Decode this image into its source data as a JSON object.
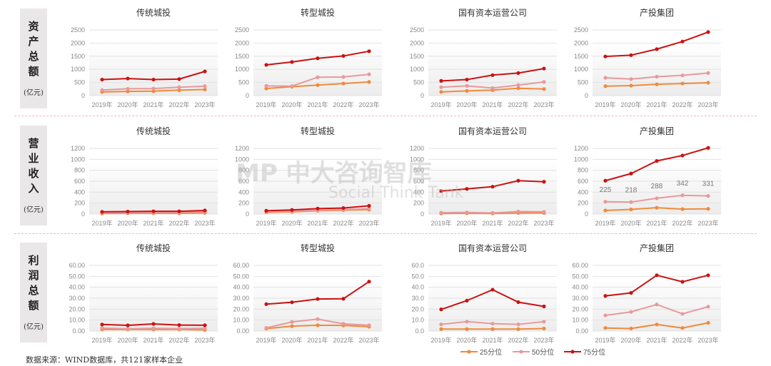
{
  "rows": [
    {
      "label": "资产总额",
      "unit": "(亿元)"
    },
    {
      "label": "营业收入",
      "unit": "(亿元)"
    },
    {
      "label": "利润总额",
      "unit": "(亿元)"
    }
  ],
  "source": "数据来源：WIND数据库，共121家样本企业",
  "watermark": {
    "main": "MP 中大咨询智库",
    "sub": "Social Think Tank"
  },
  "colors": {
    "p25": "#f08a3c",
    "p50": "#e8999c",
    "p75": "#cc1111",
    "grid": "#e2e2e2",
    "axis_text": "#888888"
  },
  "legend": [
    "25分位",
    "50分位",
    "75分位"
  ],
  "chart_data": [
    {
      "type": "line",
      "row": 0,
      "title": "传统城投",
      "categories": [
        "2019年",
        "2020年",
        "2021年",
        "2022年",
        "2023年"
      ],
      "ylim": [
        0,
        2500
      ],
      "yticks": [
        "0",
        "500",
        "1000",
        "1500",
        "2000",
        "2500"
      ],
      "series": [
        {
          "name": "25分位",
          "values": [
            140,
            160,
            170,
            210,
            230
          ]
        },
        {
          "name": "50分位",
          "values": [
            210,
            260,
            270,
            320,
            360
          ]
        },
        {
          "name": "75分位",
          "values": [
            610,
            650,
            610,
            630,
            920
          ]
        }
      ]
    },
    {
      "type": "line",
      "row": 0,
      "title": "转型城投",
      "categories": [
        "2019年",
        "2020年",
        "2021年",
        "2022年",
        "2023年"
      ],
      "ylim": [
        0,
        2500
      ],
      "yticks": [
        "0",
        "500",
        "1000",
        "1500",
        "2000",
        "2500"
      ],
      "series": [
        {
          "name": "25分位",
          "values": [
            270,
            340,
            400,
            460,
            520
          ]
        },
        {
          "name": "50分位",
          "values": [
            370,
            360,
            700,
            710,
            810
          ]
        },
        {
          "name": "75分位",
          "values": [
            1170,
            1280,
            1420,
            1510,
            1690
          ]
        }
      ]
    },
    {
      "type": "line",
      "row": 0,
      "title": "国有资本运营公司",
      "categories": [
        "2019年",
        "2020年",
        "2021年",
        "2022年",
        "2023年"
      ],
      "ylim": [
        0,
        2500
      ],
      "yticks": [
        "0",
        "500",
        "1000",
        "1500",
        "2000",
        "2500"
      ],
      "series": [
        {
          "name": "25分位",
          "values": [
            140,
            180,
            210,
            280,
            250
          ]
        },
        {
          "name": "50分位",
          "values": [
            320,
            370,
            290,
            400,
            520
          ]
        },
        {
          "name": "75分位",
          "values": [
            560,
            610,
            780,
            860,
            1030
          ]
        }
      ]
    },
    {
      "type": "line",
      "row": 0,
      "title": "产投集团",
      "categories": [
        "2019年",
        "2020年",
        "2021年",
        "2022年",
        "2023年"
      ],
      "ylim": [
        0,
        2500
      ],
      "yticks": [
        "0",
        "500",
        "1000",
        "1500",
        "2000",
        "2500"
      ],
      "series": [
        {
          "name": "25分位",
          "values": [
            360,
            380,
            430,
            460,
            490
          ]
        },
        {
          "name": "50分位",
          "values": [
            680,
            630,
            720,
            770,
            860
          ]
        },
        {
          "name": "75分位",
          "values": [
            1490,
            1540,
            1770,
            2060,
            2420
          ]
        }
      ]
    },
    {
      "type": "line",
      "row": 1,
      "title": "传统城投",
      "categories": [
        "2019年",
        "2020年",
        "2021年",
        "2022年",
        "2023年"
      ],
      "ylim": [
        0,
        1200
      ],
      "yticks": [
        "0",
        "200",
        "400",
        "600",
        "800",
        "1000",
        "1200"
      ],
      "series": [
        {
          "name": "25分位",
          "values": [
            10,
            15,
            15,
            15,
            20
          ]
        },
        {
          "name": "50分位",
          "values": [
            25,
            30,
            30,
            35,
            40
          ]
        },
        {
          "name": "75分位",
          "values": [
            40,
            45,
            50,
            50,
            65
          ]
        }
      ]
    },
    {
      "type": "line",
      "row": 1,
      "title": "转型城投",
      "categories": [
        "2019年",
        "2020年",
        "2021年",
        "2022年",
        "2023年"
      ],
      "ylim": [
        0,
        1200
      ],
      "yticks": [
        "0",
        "200",
        "400",
        "600",
        "800",
        "1000",
        "1200"
      ],
      "series": [
        {
          "name": "25分位",
          "values": [
            30,
            40,
            60,
            70,
            80
          ]
        },
        {
          "name": "50分位",
          "values": [
            40,
            50,
            70,
            80,
            100
          ]
        },
        {
          "name": "75分位",
          "values": [
            60,
            75,
            100,
            110,
            150
          ]
        }
      ]
    },
    {
      "type": "line",
      "row": 1,
      "title": "国有资本运营公司",
      "categories": [
        "2019年",
        "2020年",
        "2021年",
        "2022年",
        "2023年"
      ],
      "ylim": [
        0,
        1200
      ],
      "yticks": [
        "0",
        "200",
        "400",
        "600",
        "800",
        "1000",
        "1200"
      ],
      "series": [
        {
          "name": "25分位",
          "values": [
            10,
            15,
            10,
            20,
            20
          ]
        },
        {
          "name": "50分位",
          "values": [
            25,
            30,
            20,
            45,
            40
          ]
        },
        {
          "name": "75分位",
          "values": [
            420,
            460,
            500,
            610,
            590
          ]
        }
      ]
    },
    {
      "type": "line",
      "row": 1,
      "title": "产投集团",
      "categories": [
        "2019年",
        "2020年",
        "2021年",
        "2022年",
        "2023年"
      ],
      "ylim": [
        0,
        1200
      ],
      "yticks": [
        "0",
        "200",
        "400",
        "600",
        "800",
        "1000",
        "1200"
      ],
      "series": [
        {
          "name": "25分位",
          "values": [
            65,
            85,
            115,
            90,
            95
          ]
        },
        {
          "name": "50分位",
          "values": [
            225,
            218,
            288,
            342,
            331
          ],
          "labels": [
            "225",
            "218",
            "288",
            "342",
            "331"
          ]
        },
        {
          "name": "75分位",
          "values": [
            610,
            740,
            970,
            1070,
            1210
          ]
        }
      ]
    },
    {
      "type": "line",
      "row": 2,
      "title": "传统城投",
      "categories": [
        "2019年",
        "2020年",
        "2021年",
        "2022年",
        "2023年"
      ],
      "ylim": [
        0,
        60
      ],
      "yticks": [
        "0.00",
        "10.00",
        "20.00",
        "30.00",
        "40.00",
        "50.00",
        "60.00"
      ],
      "series": [
        {
          "name": "25分位",
          "values": [
            1.5,
            1.5,
            1.5,
            1.5,
            1.0
          ]
        },
        {
          "name": "50分位",
          "values": [
            2.8,
            2.0,
            2.5,
            2.2,
            2.5
          ]
        },
        {
          "name": "75分位",
          "values": [
            6.0,
            5.2,
            6.5,
            5.5,
            5.3
          ]
        }
      ]
    },
    {
      "type": "line",
      "row": 2,
      "title": "转型城投",
      "categories": [
        "2019年",
        "2020年",
        "2021年",
        "2022年",
        "2023年"
      ],
      "ylim": [
        0,
        60
      ],
      "yticks": [
        "0.00",
        "10.00",
        "20.00",
        "30.00",
        "40.00",
        "50.00",
        "60.00"
      ],
      "series": [
        {
          "name": "25分位",
          "values": [
            2.2,
            4.5,
            5.3,
            5.1,
            4.0
          ]
        },
        {
          "name": "50分位",
          "values": [
            2.9,
            8.3,
            10.9,
            6.6,
            5.3
          ]
        },
        {
          "name": "75分位",
          "values": [
            24.6,
            26.3,
            29.3,
            29.5,
            45.2
          ]
        }
      ]
    },
    {
      "type": "line",
      "row": 2,
      "title": "国有资本运营公司",
      "categories": [
        "2019年",
        "2020年",
        "2021年",
        "2022年",
        "2023年"
      ],
      "ylim": [
        0,
        60
      ],
      "yticks": [
        "0.0",
        "10.0",
        "20.0",
        "30.0",
        "40.0",
        "50.0",
        "60.0"
      ],
      "series": [
        {
          "name": "25分位",
          "values": [
            1.8,
            1.8,
            1.8,
            1.8,
            2.3
          ]
        },
        {
          "name": "50分位",
          "values": [
            6.1,
            8.6,
            6.8,
            6.1,
            8.6
          ]
        },
        {
          "name": "75分位",
          "values": [
            19.8,
            27.8,
            37.8,
            26.4,
            22.5
          ]
        }
      ]
    },
    {
      "type": "line",
      "row": 2,
      "title": "产投集团",
      "categories": [
        "2019年",
        "2020年",
        "2021年",
        "2022年",
        "2023年"
      ],
      "ylim": [
        0,
        60
      ],
      "yticks": [
        "0.00",
        "10.00",
        "20.00",
        "30.00",
        "40.00",
        "50.00",
        "60.00"
      ],
      "series": [
        {
          "name": "25分位",
          "values": [
            2.8,
            2.3,
            6.0,
            2.8,
            7.5
          ]
        },
        {
          "name": "50分位",
          "values": [
            14.3,
            17.5,
            24.3,
            15.7,
            22.3
          ]
        },
        {
          "name": "75分位",
          "values": [
            32.1,
            34.9,
            51.0,
            45.0,
            51.0
          ]
        }
      ]
    }
  ]
}
